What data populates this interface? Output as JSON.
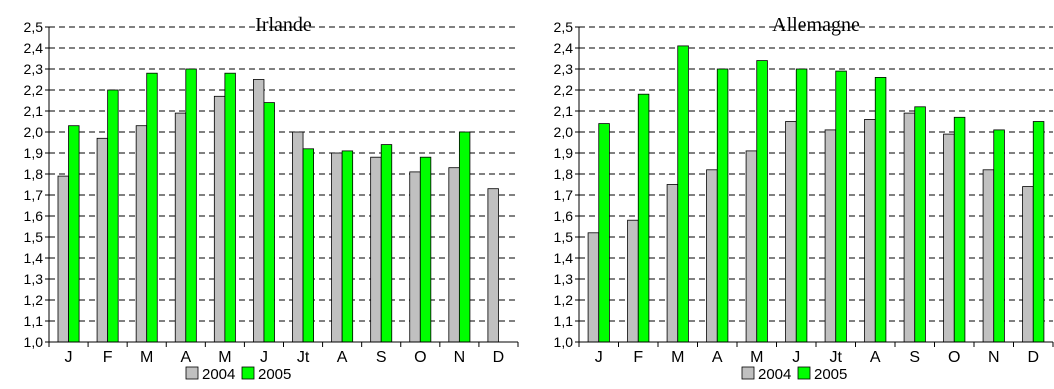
{
  "chart_data": [
    {
      "type": "bar",
      "title": "Irlande",
      "xlabel": "",
      "ylabel": "",
      "ylim": [
        1.0,
        2.5
      ],
      "y_ticks": [
        "1,0",
        "1,1",
        "1,2",
        "1,3",
        "1,4",
        "1,5",
        "1,6",
        "1,7",
        "1,8",
        "1,9",
        "2,0",
        "2,1",
        "2,2",
        "2,3",
        "2,4",
        "2,5"
      ],
      "grid": "dashed horizontal",
      "legend_position": "bottom",
      "categories": [
        "J",
        "F",
        "M",
        "A",
        "M",
        "J",
        "Jt",
        "A",
        "S",
        "O",
        "N",
        "D"
      ],
      "series": [
        {
          "name": "2004",
          "color": "#c0c0c0",
          "values": [
            1.79,
            1.97,
            2.03,
            2.09,
            2.17,
            2.25,
            2.0,
            1.9,
            1.88,
            1.81,
            1.83,
            1.73
          ]
        },
        {
          "name": "2005",
          "color": "#00ff00",
          "values": [
            2.03,
            2.2,
            2.28,
            2.3,
            2.28,
            2.14,
            1.92,
            1.91,
            1.94,
            1.88,
            2.0,
            null
          ]
        }
      ]
    },
    {
      "type": "bar",
      "title": "Allemagne",
      "xlabel": "",
      "ylabel": "",
      "ylim": [
        1.0,
        2.5
      ],
      "y_ticks": [
        "1,0",
        "1,1",
        "1,2",
        "1,3",
        "1,4",
        "1,5",
        "1,6",
        "1,7",
        "1,8",
        "1,9",
        "2,0",
        "2,1",
        "2,2",
        "2,3",
        "2,4",
        "2,5"
      ],
      "grid": "dashed horizontal",
      "legend_position": "bottom",
      "categories": [
        "J",
        "F",
        "M",
        "A",
        "M",
        "J",
        "Jt",
        "A",
        "S",
        "O",
        "N",
        "D"
      ],
      "series": [
        {
          "name": "2004",
          "color": "#c0c0c0",
          "values": [
            1.52,
            1.58,
            1.75,
            1.82,
            1.91,
            2.05,
            2.01,
            2.06,
            2.09,
            1.99,
            1.82,
            1.74
          ]
        },
        {
          "name": "2005",
          "color": "#00ff00",
          "values": [
            2.04,
            2.18,
            2.41,
            2.3,
            2.34,
            2.3,
            2.29,
            2.26,
            2.12,
            2.07,
            2.01,
            2.05
          ]
        }
      ]
    }
  ]
}
